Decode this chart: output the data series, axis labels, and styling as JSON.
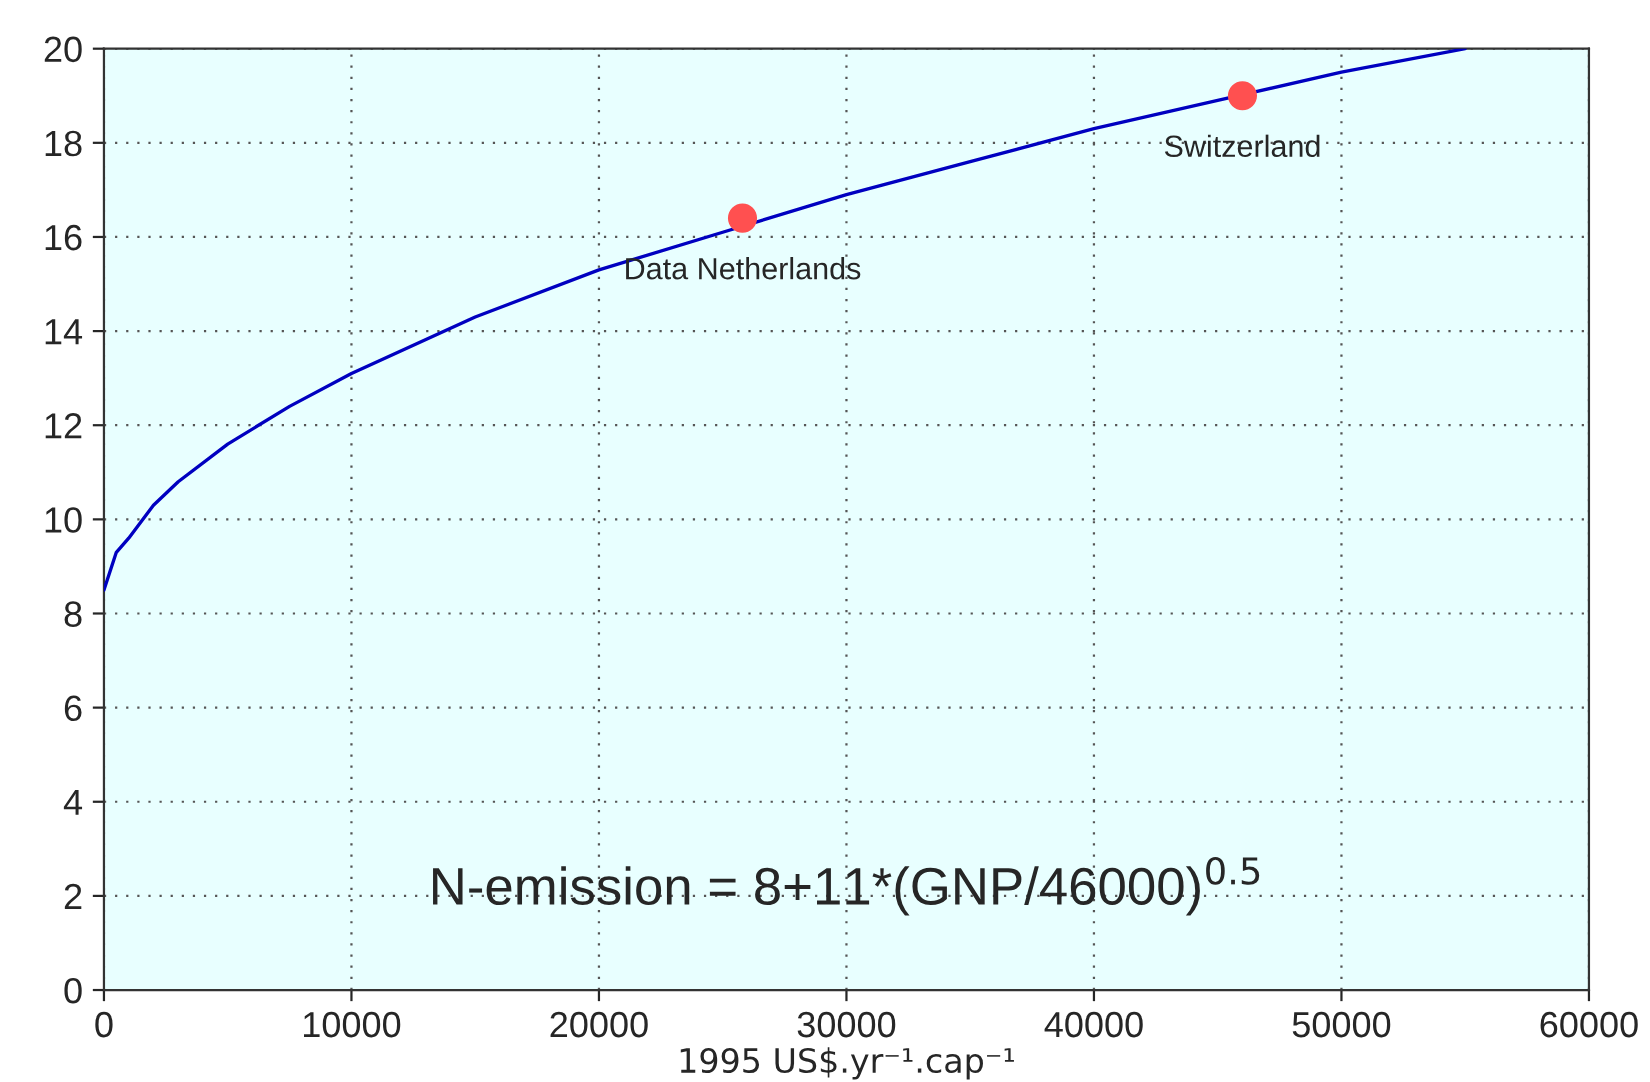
{
  "chart_data": {
    "type": "line",
    "xlabel": "1995 US$.yr⁻¹.cap⁻¹",
    "series": [
      {
        "color": "#0000c0",
        "x": [
          0,
          500,
          1000,
          2000,
          3000,
          5000,
          7500,
          10000,
          15000,
          20000,
          25000,
          30000,
          35000,
          40000,
          45000,
          50000,
          55000
        ],
        "values": [
          8.5,
          9.3,
          9.6,
          10.3,
          10.8,
          11.6,
          12.4,
          13.1,
          14.3,
          15.3,
          16.1,
          16.9,
          17.6,
          18.3,
          18.9,
          19.5,
          20.0
        ]
      },
      {
        "type": "scatter",
        "color": "#ff5050",
        "marker": "circle",
        "x": [
          25800,
          46000
        ],
        "values": [
          16.4,
          19.0
        ]
      }
    ],
    "annotations": [
      {
        "text": "Data Netherlands",
        "x": 25800,
        "y": 16.4
      },
      {
        "text": "Switzerland",
        "x": 46000,
        "y": 19.0
      },
      "N-emission = 8+11*(GNP/46000)$^{0.5}$"
    ],
    "xlim": [
      0,
      60000
    ],
    "xticks": [
      0,
      10000,
      20000,
      30000,
      40000,
      50000,
      60000
    ],
    "ylim": [
      0,
      20
    ],
    "yticks": [
      0,
      2,
      4,
      6,
      8,
      10,
      12,
      14,
      16,
      18,
      20
    ],
    "grid": true
  }
}
